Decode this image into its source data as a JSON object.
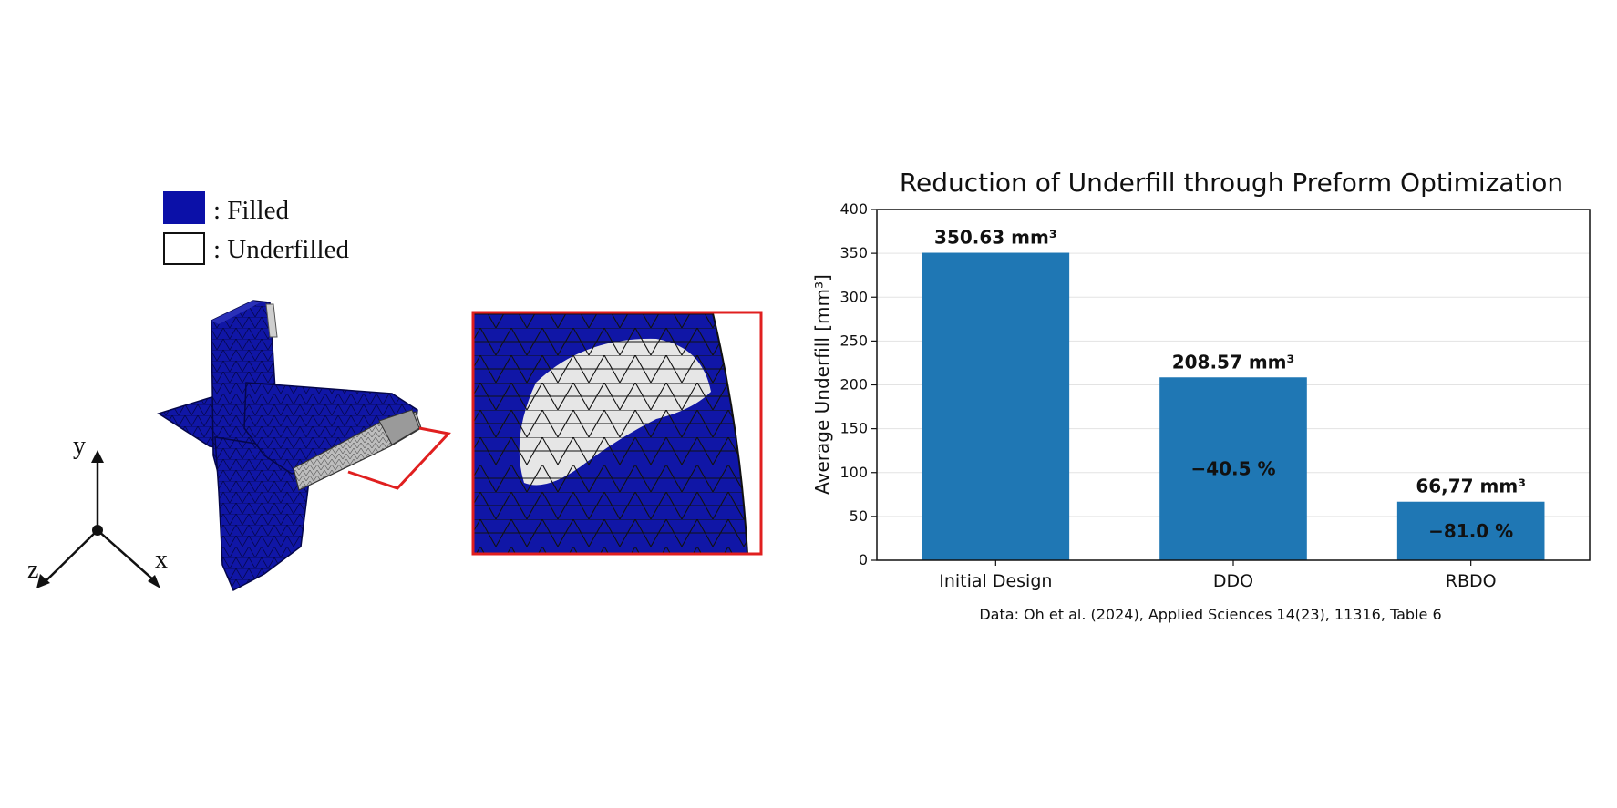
{
  "figure": {
    "legend": {
      "filled_label": ": Filled",
      "underfilled_label": ": Underfilled",
      "filled_color": "#0b10a8",
      "underfilled_color": "#ffffff"
    },
    "axes_triad": {
      "x": "x",
      "y": "y",
      "z": "z"
    },
    "colors": {
      "mesh_fill": "#1016a6",
      "highlight_box": "#e01f1f",
      "underfill_region": "#e6e6e6"
    }
  },
  "chart_data": {
    "type": "bar",
    "title": "Reduction of Underfill through Preform Optimization",
    "xlabel": "",
    "ylabel": "Average Underfill [mm³]",
    "ylim": [
      0,
      400
    ],
    "yticks": [
      0,
      50,
      100,
      150,
      200,
      250,
      300,
      350,
      400
    ],
    "categories": [
      "Initial Design",
      "DDO",
      "RBDO"
    ],
    "values": [
      350.63,
      208.57,
      66.77
    ],
    "value_labels": [
      "350.63 mm³",
      "208.57 mm³",
      "66,77 mm³"
    ],
    "reduction_labels": [
      "",
      "−40.5 %",
      "−81.0 %"
    ],
    "bar_color": "#1f77b4",
    "grid": true,
    "source": "Data: Oh et al. (2024), Applied Sciences 14(23), 11316, Table 6"
  }
}
